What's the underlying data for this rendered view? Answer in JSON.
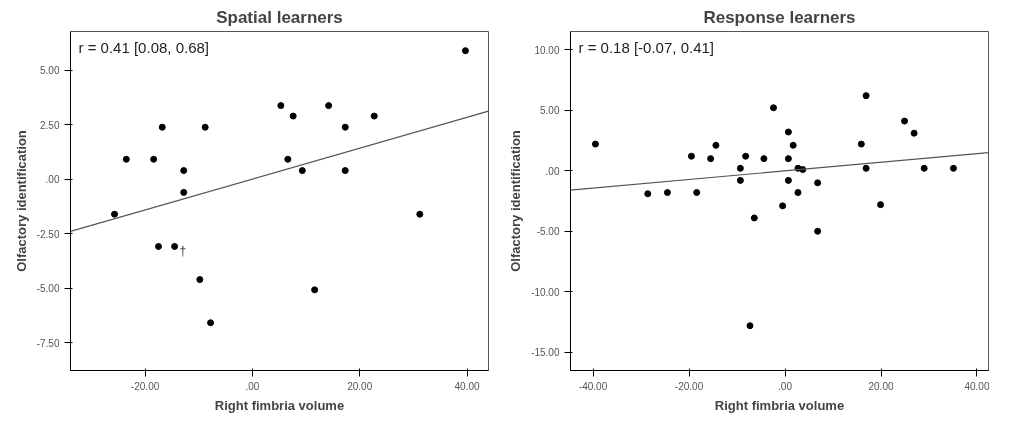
{
  "chart_data": [
    {
      "type": "scatter",
      "title": "Spatial learners",
      "xlabel": "Right fimbria volume",
      "ylabel": "Olfactory identification",
      "xlim": [
        -33.9,
        44.0
      ],
      "ylim": [
        -8.77,
        6.78
      ],
      "xticks": [
        {
          "value": -20,
          "label": "-20.00"
        },
        {
          "value": 0,
          "label": ".00"
        },
        {
          "value": 20,
          "label": "20.00"
        },
        {
          "value": 40,
          "label": "40.00"
        }
      ],
      "yticks": [
        {
          "value": -7.5,
          "label": "-7.50"
        },
        {
          "value": -5,
          "label": "-5.00"
        },
        {
          "value": -2.5,
          "label": "-2.50"
        },
        {
          "value": 0,
          "label": ".00"
        },
        {
          "value": 2.5,
          "label": "2.50"
        },
        {
          "value": 5,
          "label": "5.00"
        }
      ],
      "grid": false,
      "annotations": [
        "r = 0.41 [0.08, 0.68]",
        {
          "text": "†",
          "x": -14.5,
          "y": -3.08
        }
      ],
      "series": [
        {
          "marker": "circle",
          "color": "#000000",
          "x": [
            -25.7,
            -23.5,
            -18.4,
            -16.8,
            -17.5,
            -14.5,
            -12.8,
            -12.8,
            -8.8,
            -9.8,
            -7.8,
            5.3,
            7.6,
            6.6,
            9.3,
            11.6,
            14.2,
            17.3,
            17.3,
            22.7,
            31.2,
            39.7
          ],
          "values": [
            -1.6,
            0.92,
            0.92,
            2.39,
            -3.08,
            -3.08,
            0.4,
            -0.6,
            2.39,
            -4.6,
            -6.58,
            3.38,
            2.9,
            0.92,
            0.4,
            -5.07,
            3.38,
            2.39,
            0.4,
            2.9,
            -1.6,
            5.9
          ]
        },
        {
          "type": "line",
          "color": "#555555",
          "x": [
            -33.9,
            44.0
          ],
          "values": [
            -2.39,
            3.13
          ]
        }
      ]
    },
    {
      "type": "scatter",
      "title": "Response learners",
      "xlabel": "Right fimbria volume",
      "ylabel": "Olfactory identification",
      "xlim": [
        -44.7,
        42.4
      ],
      "ylim": [
        -16.5,
        11.5
      ],
      "xticks": [
        {
          "value": -40,
          "label": "-40.00"
        },
        {
          "value": -20,
          "label": "-20.00"
        },
        {
          "value": 0,
          "label": ".00"
        },
        {
          "value": 20,
          "label": "20.00"
        },
        {
          "value": 40,
          "label": "40.00"
        }
      ],
      "yticks": [
        {
          "value": -15,
          "label": "-15.00"
        },
        {
          "value": -10,
          "label": "-10.00"
        },
        {
          "value": -5,
          "label": "-5.00"
        },
        {
          "value": 0,
          "label": ".00"
        },
        {
          "value": 5,
          "label": "5.00"
        },
        {
          "value": 10,
          "label": "10.00"
        }
      ],
      "grid": false,
      "annotations": [
        "r = 0.18 [-0.07, 0.41]"
      ],
      "series": [
        {
          "marker": "circle",
          "color": "#000000",
          "x": [
            -39.5,
            -28.6,
            -24.5,
            -19.5,
            -18.4,
            -15.5,
            -14.4,
            -9.3,
            -9.3,
            -8.2,
            -7.3,
            -6.4,
            -4.4,
            -2.4,
            -0.5,
            0.7,
            0.7,
            0.7,
            1.7,
            2.7,
            2.7,
            3.7,
            6.8,
            6.8,
            15.9,
            16.9,
            16.9,
            19.9,
            24.9,
            26.9,
            29.0,
            35.1
          ],
          "values": [
            2.2,
            -1.9,
            -1.8,
            1.2,
            -1.8,
            1.0,
            2.1,
            0.2,
            -0.8,
            1.2,
            -12.8,
            -3.9,
            1.0,
            5.2,
            -2.9,
            3.2,
            1.0,
            -0.8,
            2.1,
            0.2,
            -1.8,
            0.1,
            -1.0,
            -5.0,
            2.2,
            6.2,
            0.2,
            -2.8,
            4.1,
            3.1,
            0.2,
            0.2
          ]
        },
        {
          "type": "line",
          "color": "#555555",
          "x": [
            -44.7,
            42.4
          ],
          "values": [
            -1.6,
            1.5
          ]
        }
      ]
    }
  ]
}
